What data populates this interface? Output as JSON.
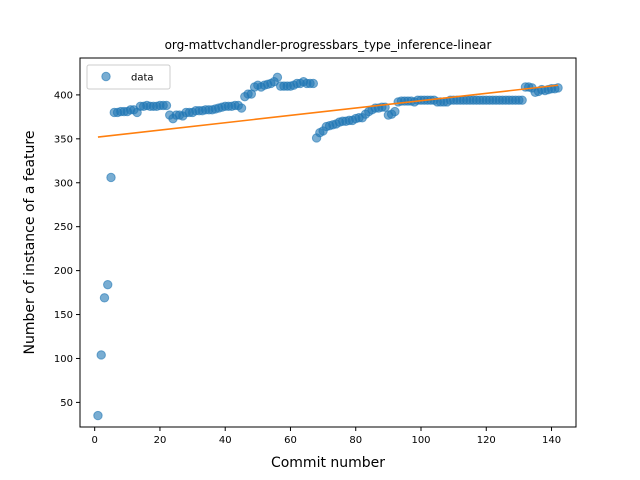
{
  "chart_data": {
    "type": "scatter",
    "title": "org-mattvchandler-progressbars_type_inference-linear",
    "xlabel": "Commit number",
    "ylabel": "Number of instance of a feature",
    "xlim": [
      -4.5,
      147.5
    ],
    "ylim": [
      22,
      442
    ],
    "xticks": [
      0,
      20,
      40,
      60,
      80,
      100,
      120,
      140
    ],
    "yticks": [
      50,
      100,
      150,
      200,
      250,
      300,
      350,
      400
    ],
    "legend": {
      "position": "top-left",
      "entries": [
        "data"
      ]
    },
    "colors": {
      "scatter": "#1f77b4",
      "fit": "#ff7f0e"
    },
    "series": [
      {
        "name": "data",
        "kind": "scatter",
        "x": [
          1,
          2,
          3,
          4,
          5,
          6,
          7,
          8,
          9,
          10,
          11,
          12,
          13,
          14,
          15,
          16,
          17,
          18,
          19,
          20,
          21,
          22,
          23,
          24,
          25,
          26,
          27,
          28,
          29,
          30,
          31,
          32,
          33,
          34,
          35,
          36,
          37,
          38,
          39,
          40,
          41,
          42,
          43,
          44,
          45,
          46,
          47,
          48,
          49,
          50,
          51,
          52,
          53,
          54,
          55,
          56,
          57,
          58,
          59,
          60,
          61,
          62,
          63,
          64,
          65,
          66,
          67,
          68,
          69,
          70,
          71,
          72,
          73,
          74,
          75,
          76,
          77,
          78,
          79,
          80,
          81,
          82,
          83,
          84,
          85,
          86,
          87,
          88,
          89,
          90,
          91,
          92,
          93,
          94,
          95,
          96,
          97,
          98,
          99,
          100,
          101,
          102,
          103,
          104,
          105,
          106,
          107,
          108,
          109,
          110,
          111,
          112,
          113,
          114,
          115,
          116,
          117,
          118,
          119,
          120,
          121,
          122,
          123,
          124,
          125,
          126,
          127,
          128,
          129,
          130,
          131,
          132,
          133,
          134,
          135,
          136,
          137,
          138,
          139,
          140,
          141,
          142
        ],
        "y": [
          35,
          104,
          169,
          184,
          306,
          380,
          380,
          381,
          381,
          381,
          383,
          383,
          380,
          387,
          387,
          388,
          387,
          387,
          387,
          388,
          388,
          388,
          377,
          373,
          377,
          377,
          376,
          380,
          380,
          380,
          382,
          382,
          382,
          383,
          383,
          383,
          384,
          385,
          386,
          387,
          387,
          387,
          388,
          388,
          385,
          398,
          401,
          401,
          409,
          411,
          409,
          411,
          412,
          413,
          415,
          420,
          410,
          410,
          410,
          410,
          411,
          413,
          413,
          415,
          413,
          413,
          413,
          351,
          357,
          359,
          364,
          365,
          366,
          367,
          369,
          370,
          370,
          371,
          371,
          373,
          374,
          374,
          378,
          381,
          383,
          385,
          385,
          386,
          386,
          377,
          378,
          381,
          392,
          393,
          393,
          393,
          393,
          392,
          394,
          394,
          394,
          394,
          394,
          394,
          392,
          392,
          392,
          392,
          394,
          394,
          394,
          394,
          394,
          394,
          394,
          394,
          394,
          394,
          394,
          394,
          394,
          394,
          394,
          394,
          394,
          394,
          394,
          394,
          394,
          394,
          394,
          409,
          409,
          408,
          403,
          404,
          406,
          405,
          406,
          407,
          407,
          408
        ]
      },
      {
        "name": "",
        "kind": "line",
        "x": [
          1,
          142
        ],
        "y": [
          352,
          411
        ]
      }
    ]
  }
}
